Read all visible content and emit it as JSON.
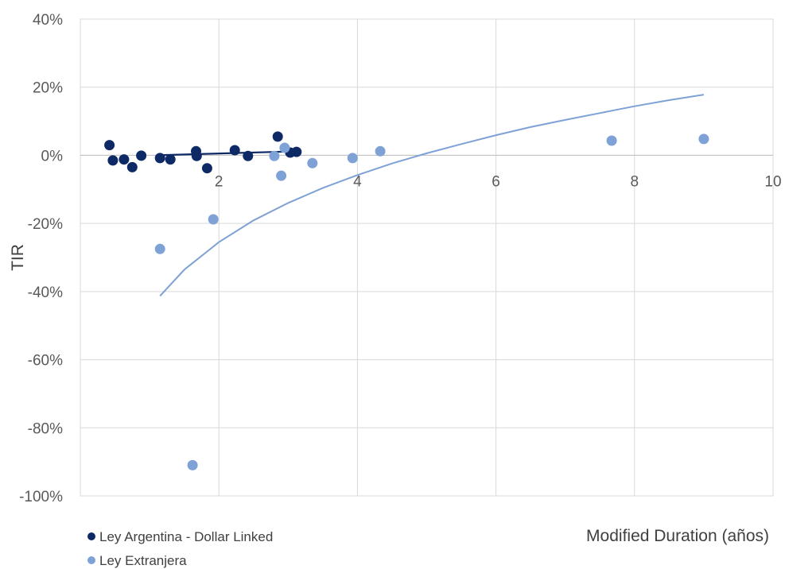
{
  "chart_data": {
    "type": "scatter",
    "title": "",
    "xlabel": "Modified Duration (años)",
    "ylabel": "TIR",
    "xlim": [
      0,
      10
    ],
    "ylim": [
      -100,
      40
    ],
    "x_ticks": [
      "2",
      "4",
      "6",
      "8",
      "10"
    ],
    "y_ticks": [
      "40%",
      "20%",
      "0%",
      "-20%",
      "-40%",
      "-60%",
      "-80%",
      "-100%"
    ],
    "grid": true,
    "legend_position": "bottom-left",
    "series": [
      {
        "name": "Ley Argentina - Dollar Linked",
        "color": "#0d2a66",
        "points": [
          [
            0.42,
            3.0
          ],
          [
            0.47,
            -1.5
          ],
          [
            0.63,
            -1.2
          ],
          [
            0.75,
            -3.5
          ],
          [
            0.88,
            -0.1
          ],
          [
            1.15,
            -0.8
          ],
          [
            1.3,
            -1.2
          ],
          [
            1.67,
            1.2
          ],
          [
            1.68,
            -0.2
          ],
          [
            1.83,
            -3.8
          ],
          [
            2.23,
            1.5
          ],
          [
            2.42,
            -0.2
          ],
          [
            2.85,
            5.5
          ],
          [
            3.03,
            0.8
          ],
          [
            3.12,
            1.0
          ]
        ],
        "trendline": {
          "type": "linear",
          "x": [
            1.1,
            3.15
          ],
          "y": [
            0.0,
            1.2
          ]
        }
      },
      {
        "name": "Ley Extranjera",
        "color": "#7ea1d6",
        "points": [
          [
            1.15,
            -27.5
          ],
          [
            1.62,
            -91.0
          ],
          [
            1.92,
            -18.8
          ],
          [
            2.8,
            -0.2
          ],
          [
            2.9,
            -6.0
          ],
          [
            2.95,
            2.2
          ],
          [
            3.35,
            -2.3
          ],
          [
            3.93,
            -0.8
          ],
          [
            4.33,
            1.2
          ],
          [
            7.67,
            4.3
          ],
          [
            9.0,
            4.8
          ]
        ],
        "trendline": {
          "type": "logarithmic",
          "x": [
            1.15,
            1.5,
            2.0,
            2.5,
            3.0,
            3.5,
            4.0,
            4.5,
            5.0,
            5.5,
            6.0,
            6.5,
            7.0,
            7.5,
            8.0,
            8.5,
            9.0
          ],
          "y": [
            -41.3,
            -33.6,
            -25.5,
            -19.1,
            -14.0,
            -9.6,
            -5.8,
            -2.4,
            0.6,
            3.3,
            5.9,
            8.3,
            10.4,
            12.4,
            14.4,
            16.2,
            17.8
          ]
        }
      }
    ]
  }
}
